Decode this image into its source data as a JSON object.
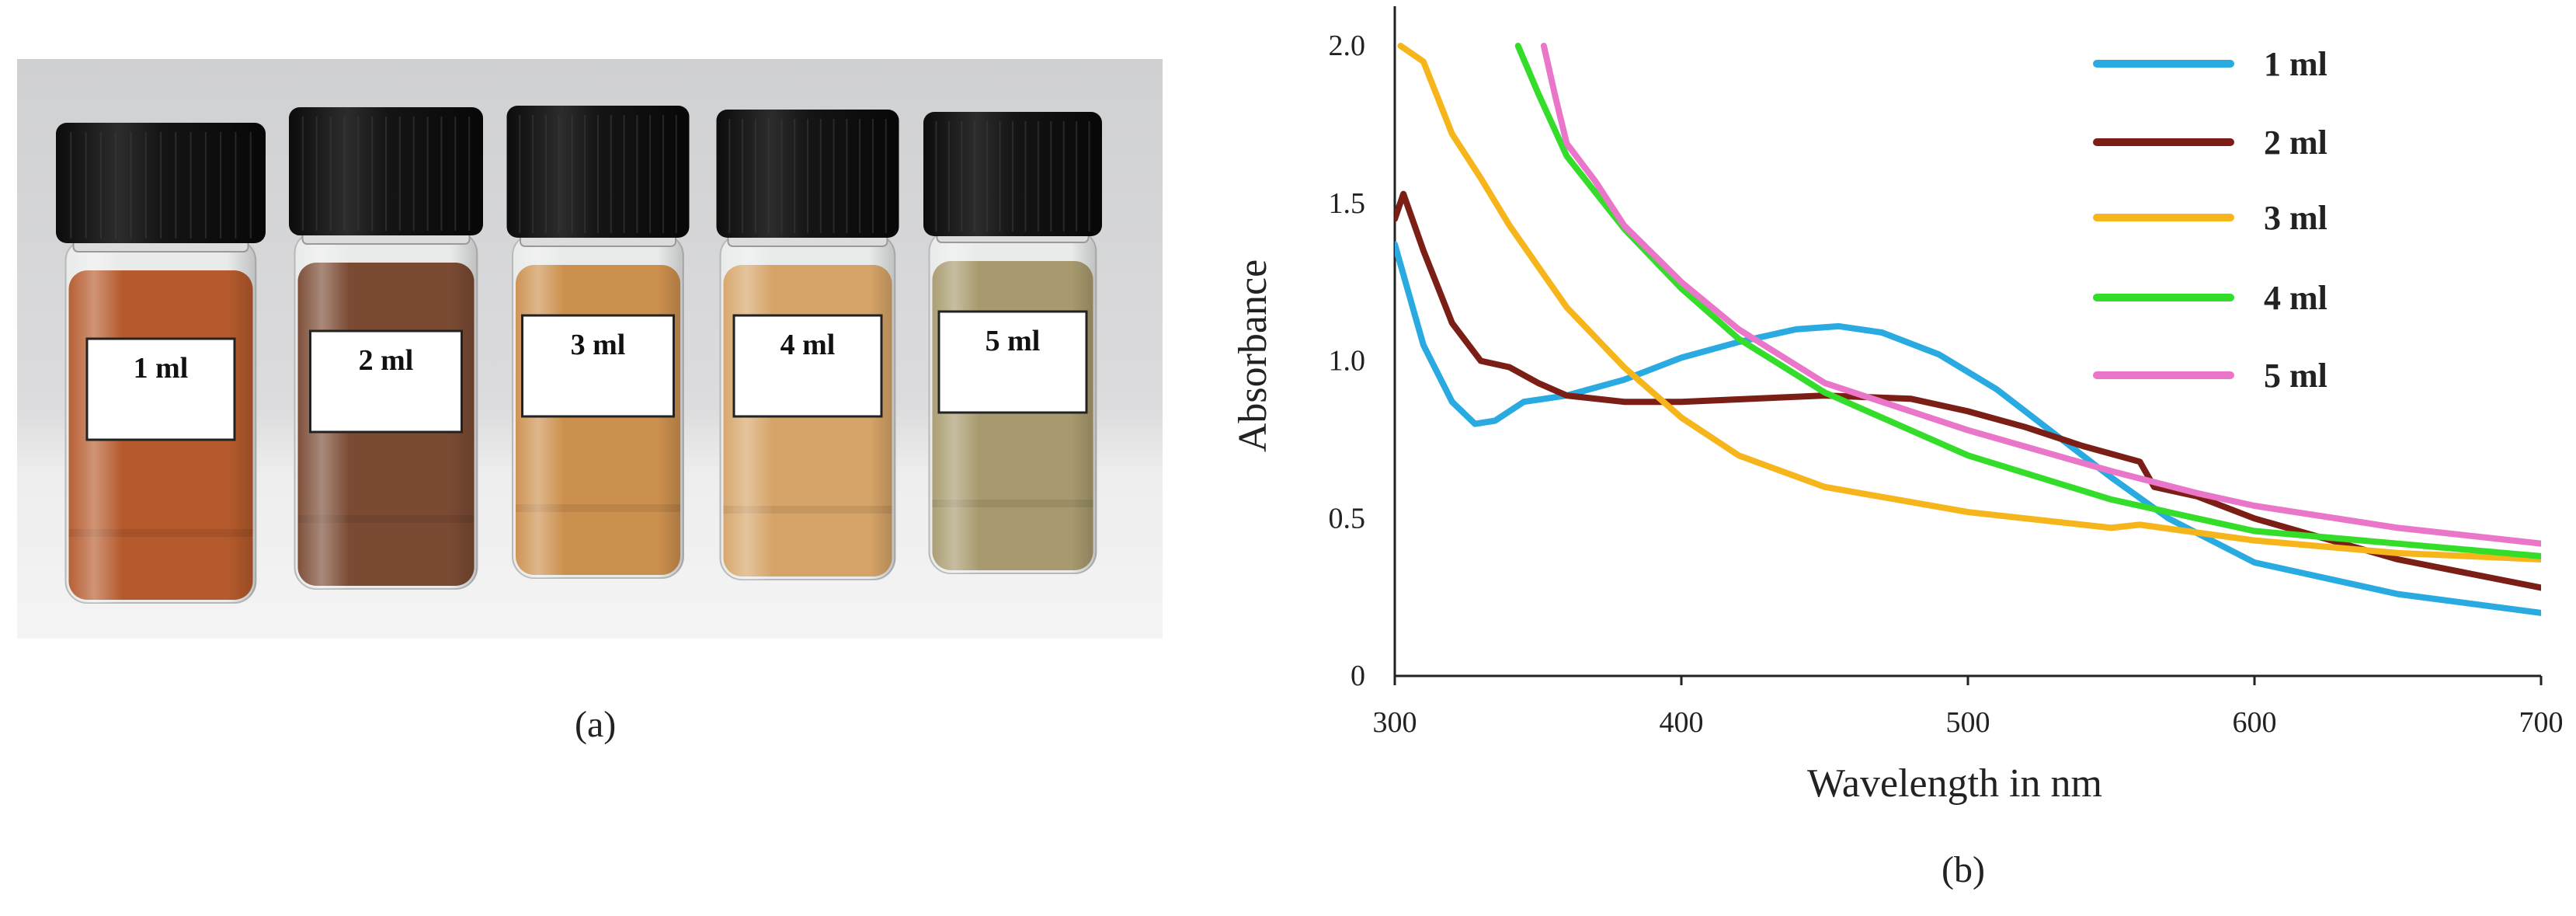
{
  "panel_a": {
    "caption": "(a)",
    "vials": [
      {
        "label": "1 ml",
        "liquid_color": "#b55a2c"
      },
      {
        "label": "2 ml",
        "liquid_color": "#7a4a33"
      },
      {
        "label": "3 ml",
        "liquid_color": "#cc904e"
      },
      {
        "label": "4 ml",
        "liquid_color": "#d6a468"
      },
      {
        "label": "5 ml",
        "liquid_color": "#a89a6e"
      }
    ]
  },
  "panel_b": {
    "caption": "(b)"
  },
  "chart_data": {
    "type": "line",
    "title": "",
    "xlabel": "Wavelength in nm",
    "ylabel": "Absorbance",
    "xlim": [
      300,
      700
    ],
    "ylim": [
      0,
      2.0
    ],
    "xticks": [
      "300",
      "400",
      "500",
      "600",
      "700"
    ],
    "yticks": [
      "0",
      "0.5",
      "1.0",
      "1.5",
      "2.0"
    ],
    "legend_position": "top-right",
    "grid": false,
    "series": [
      {
        "name": "1 ml",
        "color": "#29abe2",
        "x": [
          300,
          310,
          320,
          328,
          335,
          345,
          360,
          380,
          400,
          420,
          440,
          455,
          470,
          490,
          510,
          530,
          550,
          570,
          600,
          650,
          700
        ],
        "y": [
          1.37,
          1.05,
          0.87,
          0.8,
          0.81,
          0.87,
          0.89,
          0.94,
          1.01,
          1.06,
          1.1,
          1.11,
          1.09,
          1.02,
          0.91,
          0.77,
          0.63,
          0.5,
          0.36,
          0.26,
          0.2
        ]
      },
      {
        "name": "2 ml",
        "color": "#7b1f16",
        "x": [
          300,
          303,
          310,
          320,
          330,
          340,
          350,
          360,
          380,
          400,
          450,
          480,
          500,
          520,
          540,
          560,
          565,
          580,
          600,
          650,
          700
        ],
        "y": [
          1.45,
          1.53,
          1.35,
          1.12,
          1.0,
          0.98,
          0.93,
          0.89,
          0.87,
          0.87,
          0.89,
          0.88,
          0.84,
          0.79,
          0.73,
          0.68,
          0.6,
          0.57,
          0.5,
          0.37,
          0.28
        ]
      },
      {
        "name": "3 ml",
        "color": "#f6b51a",
        "x": [
          302,
          310,
          320,
          330,
          340,
          350,
          360,
          380,
          400,
          420,
          450,
          500,
          550,
          560,
          600,
          650,
          700
        ],
        "y": [
          2.0,
          1.95,
          1.72,
          1.58,
          1.43,
          1.3,
          1.17,
          0.98,
          0.82,
          0.7,
          0.6,
          0.52,
          0.47,
          0.48,
          0.43,
          0.39,
          0.37
        ]
      },
      {
        "name": "4 ml",
        "color": "#33dd2a",
        "x": [
          343,
          350,
          360,
          380,
          400,
          420,
          450,
          500,
          550,
          580,
          600,
          650,
          700
        ],
        "y": [
          2.0,
          1.85,
          1.65,
          1.42,
          1.23,
          1.07,
          0.9,
          0.7,
          0.56,
          0.5,
          0.46,
          0.42,
          0.38
        ]
      },
      {
        "name": "5 ml",
        "color": "#ea76c9",
        "x": [
          352,
          356,
          360,
          370,
          380,
          400,
          420,
          450,
          500,
          550,
          580,
          600,
          650,
          700
        ],
        "y": [
          2.0,
          1.84,
          1.69,
          1.57,
          1.43,
          1.25,
          1.1,
          0.93,
          0.78,
          0.65,
          0.58,
          0.54,
          0.47,
          0.42
        ]
      }
    ]
  }
}
